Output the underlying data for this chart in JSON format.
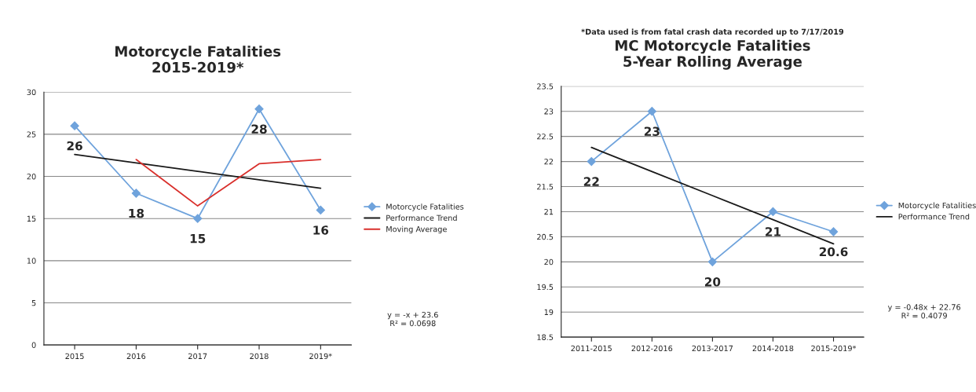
{
  "chart_data": [
    {
      "type": "line",
      "title": "Motorcycle Fatalities\n2015-2019*",
      "categories": [
        "2015",
        "2016",
        "2017",
        "2018",
        "2019*"
      ],
      "series": [
        {
          "name": "Motorcycle Fatalities",
          "color": "#6fa3dc",
          "marker": "diamond",
          "values": [
            26,
            18,
            15,
            28,
            16
          ],
          "value_labels": [
            "26",
            "18",
            "15",
            "28",
            "16"
          ]
        },
        {
          "name": "Performance Trend",
          "color": "#1a1a1a",
          "marker": "none",
          "values": [
            22.6,
            21.6,
            20.6,
            19.6,
            18.6
          ]
        },
        {
          "name": "Moving Average",
          "color": "#d9302c",
          "marker": "none",
          "values": [
            null,
            22,
            16.5,
            21.5,
            22
          ]
        }
      ],
      "ylim": [
        0,
        30
      ],
      "yticks": [
        0,
        5,
        10,
        15,
        20,
        25,
        30
      ],
      "grid": "y",
      "legend": "right",
      "line_style": "solid",
      "annotations": [
        "y = -x + 23.6\nR² = 0.0698"
      ]
    },
    {
      "type": "line",
      "title": "MC Motorcycle Fatalities\n5-Year Rolling Average",
      "categories": [
        "2011-2015",
        "2012-2016",
        "2013-2017",
        "2014-2018",
        "2015-2019*"
      ],
      "series": [
        {
          "name": "Motorcycle Fatalities",
          "color": "#6fa3dc",
          "marker": "diamond",
          "values": [
            22,
            23,
            20,
            21,
            20.6
          ],
          "value_labels": [
            "22",
            "23",
            "20",
            "21",
            "20.6"
          ]
        },
        {
          "name": "Performance Trend",
          "color": "#1a1a1a",
          "marker": "none",
          "values": [
            22.28,
            21.8,
            21.32,
            20.84,
            20.36
          ]
        }
      ],
      "ylim": [
        18.5,
        23.5
      ],
      "yticks": [
        18.5,
        19,
        19.5,
        20,
        20.5,
        21,
        21.5,
        22,
        22.5,
        23,
        23.5
      ],
      "grid": "y",
      "legend": "right",
      "line_style": "solid",
      "annotations": [
        "*Data used is from fatal crash data recorded up to 7/17/2019",
        "y = -0.48x + 22.76\nR² = 0.4079"
      ]
    }
  ]
}
